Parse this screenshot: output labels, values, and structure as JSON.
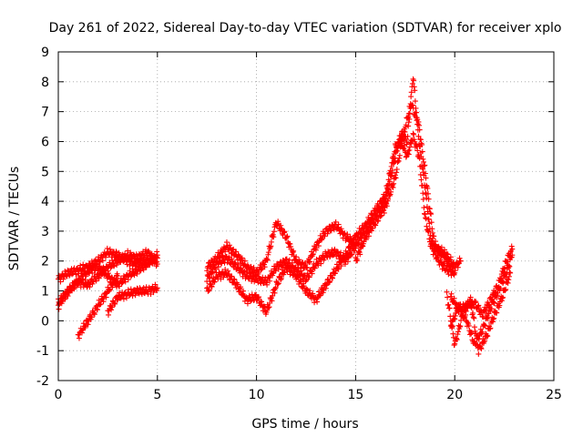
{
  "chart_data": {
    "type": "scatter",
    "title": "Day 261 of 2022, Sidereal Day-to-day VTEC variation (SDTVAR) for receiver xplo",
    "xlabel": "GPS time / hours",
    "ylabel": "SDTVAR / TECUs",
    "xlim": [
      0,
      25
    ],
    "ylim": [
      -2,
      9
    ],
    "x_ticks": [
      0,
      5,
      10,
      15,
      20,
      25
    ],
    "y_ticks": [
      -2,
      -1,
      0,
      1,
      2,
      3,
      4,
      5,
      6,
      7,
      8,
      9
    ],
    "grid": true,
    "marker": "+",
    "series": [
      {
        "name": "SDTVAR",
        "color": "#ff0000",
        "tracks": [
          {
            "x": [
              0.0,
              0.5,
              1.0,
              1.5,
              2.0,
              2.5,
              3.0,
              3.5,
              4.0,
              4.5,
              5.0
            ],
            "y": [
              1.4,
              1.6,
              1.7,
              1.8,
              2.0,
              2.3,
              2.2,
              2.0,
              1.9,
              2.0,
              2.1
            ]
          },
          {
            "x": [
              0.0,
              0.5,
              1.0,
              1.5,
              2.0,
              2.5,
              3.0,
              3.5,
              4.0,
              4.5,
              5.0
            ],
            "y": [
              0.6,
              1.0,
              1.3,
              1.2,
              1.5,
              1.8,
              2.0,
              2.2,
              2.1,
              2.3,
              1.9
            ]
          },
          {
            "x": [
              0.0,
              0.4,
              0.8,
              1.2,
              1.6,
              2.0,
              2.5,
              3.0,
              3.5,
              4.0,
              4.5,
              5.0
            ],
            "y": [
              0.5,
              0.9,
              1.2,
              1.5,
              1.7,
              1.8,
              1.5,
              1.2,
              1.5,
              1.7,
              1.9,
              2.2
            ]
          },
          {
            "x": [
              1.0,
              1.5,
              2.0,
              2.5,
              3.0
            ],
            "y": [
              -0.5,
              0.0,
              0.5,
              1.0,
              1.5
            ]
          },
          {
            "x": [
              2.5,
              3.0,
              3.5,
              4.0,
              4.5,
              5.0
            ],
            "y": [
              0.3,
              0.8,
              0.9,
              1.0,
              1.0,
              1.1
            ]
          },
          {
            "x": [
              7.5,
              8.0,
              8.5,
              9.0,
              9.5,
              10.0,
              10.5,
              11.0,
              11.5,
              12.0,
              12.5,
              13.0,
              13.5,
              14.0,
              14.5,
              15.0
            ],
            "y": [
              1.8,
              2.1,
              2.5,
              2.2,
              1.8,
              1.6,
              2.0,
              3.3,
              2.8,
              2.0,
              1.8,
              2.5,
              3.0,
              3.2,
              2.8,
              2.6
            ]
          },
          {
            "x": [
              7.5,
              8.0,
              8.5,
              9.0,
              9.5,
              10.0,
              10.5,
              11.0,
              11.5,
              12.0,
              12.5,
              13.0,
              13.5,
              14.0,
              14.5,
              15.0
            ],
            "y": [
              1.4,
              1.9,
              2.1,
              1.8,
              1.5,
              1.4,
              1.3,
              1.8,
              2.0,
              1.7,
              1.4,
              1.9,
              2.2,
              2.3,
              2.0,
              2.5
            ]
          },
          {
            "x": [
              7.5,
              8.0,
              8.5,
              9.0,
              9.5,
              10.0,
              10.5,
              11.0,
              11.5,
              12.0,
              12.5,
              13.0,
              13.5,
              14.0,
              14.5,
              15.0
            ],
            "y": [
              1.0,
              1.5,
              1.6,
              1.2,
              0.7,
              0.8,
              0.3,
              1.2,
              1.8,
              1.5,
              1.0,
              0.7,
              1.2,
              1.7,
              2.2,
              2.8
            ]
          },
          {
            "x": [
              15.0,
              15.5,
              16.0,
              16.5,
              17.0,
              17.3,
              17.6,
              17.9,
              18.2,
              18.5,
              18.8,
              19.2,
              19.6,
              20.0,
              20.3
            ],
            "y": [
              2.5,
              3.0,
              3.5,
              4.0,
              5.5,
              6.3,
              6.0,
              8.2,
              6.0,
              4.5,
              2.7,
              2.4,
              2.2,
              1.8,
              2.0
            ]
          },
          {
            "x": [
              15.0,
              15.5,
              16.0,
              16.5,
              17.0,
              17.3,
              17.6,
              17.9,
              18.2,
              18.5,
              18.8,
              19.2,
              19.6,
              20.0
            ],
            "y": [
              2.8,
              3.2,
              3.7,
              4.2,
              5.8,
              6.0,
              5.5,
              6.2,
              5.5,
              3.5,
              2.5,
              2.0,
              1.7,
              1.6
            ]
          },
          {
            "x": [
              15.0,
              15.5,
              16.0,
              16.5,
              17.0,
              17.4,
              17.8,
              18.2,
              18.6,
              19.0,
              19.4,
              19.8
            ],
            "y": [
              2.0,
              2.8,
              3.3,
              3.8,
              4.8,
              6.2,
              7.3,
              6.5,
              4.5,
              2.4,
              2.2,
              1.8
            ]
          },
          {
            "x": [
              19.8,
              20.2,
              20.6,
              21.0,
              21.4,
              21.8,
              22.2,
              22.6,
              22.9
            ],
            "y": [
              0.8,
              0.4,
              0.5,
              0.6,
              0.2,
              0.7,
              1.2,
              2.0,
              2.4
            ]
          },
          {
            "x": [
              19.8,
              20.2,
              20.6,
              21.0,
              21.4,
              21.8,
              22.2,
              22.6,
              22.9
            ],
            "y": [
              -0.2,
              0.5,
              0.0,
              -0.8,
              -0.3,
              0.4,
              1.0,
              1.6,
              2.2
            ]
          },
          {
            "x": [
              19.6,
              20.0,
              20.4,
              20.8,
              21.2,
              21.6,
              22.0,
              22.4,
              22.8
            ],
            "y": [
              0.9,
              -0.8,
              0.2,
              0.7,
              -1.0,
              -0.5,
              0.2,
              0.8,
              1.6
            ]
          }
        ]
      }
    ]
  }
}
